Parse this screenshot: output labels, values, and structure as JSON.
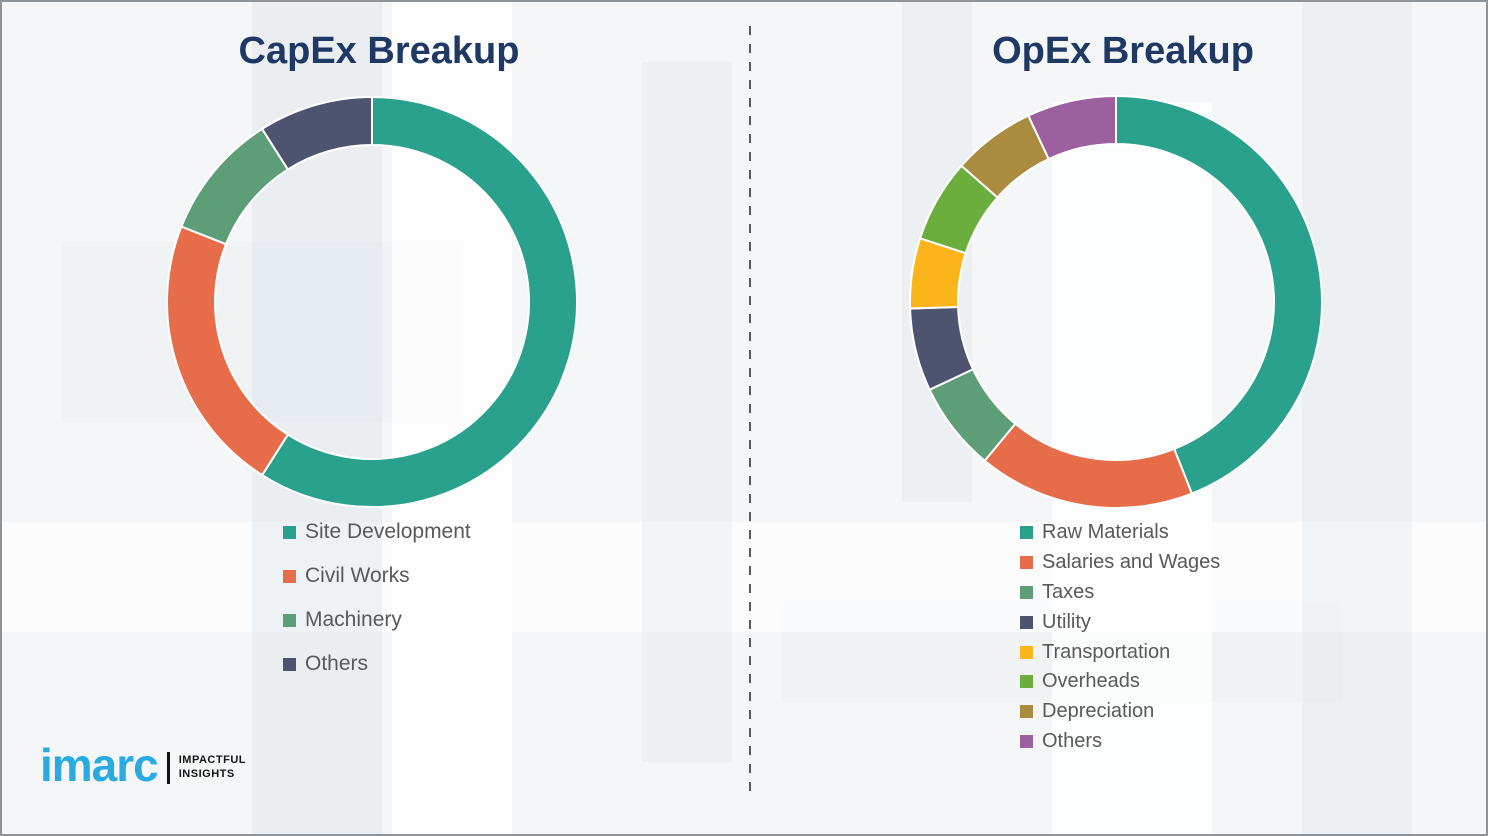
{
  "page": {
    "background_color": "#f5f6f7",
    "border_color": "#8f9499",
    "title_color": "#1f3864",
    "legend_text_color": "#595959",
    "divider_style": "vertical-dashed"
  },
  "chart_data": [
    {
      "type": "pie",
      "variant": "donut",
      "title": "CapEx Breakup",
      "legend_position": "below-left",
      "outer_radius": 205,
      "inner_radius": 157,
      "start_angle_deg": 0,
      "direction": "clockwise",
      "segments": [
        {
          "label": "Site Development",
          "value": 59,
          "color": "#2aa18d"
        },
        {
          "label": "Civil Works",
          "value": 22,
          "color": "#e66c4a"
        },
        {
          "label": "Machinery",
          "value": 10,
          "color": "#5d9e79"
        },
        {
          "label": "Others",
          "value": 9,
          "color": "#4e5370"
        }
      ]
    },
    {
      "type": "pie",
      "variant": "donut",
      "title": "OpEx Breakup",
      "legend_position": "below-left",
      "outer_radius": 206,
      "inner_radius": 158,
      "start_angle_deg": 0,
      "direction": "clockwise",
      "segments": [
        {
          "label": "Raw Materials",
          "value": 44,
          "color": "#2aa18d"
        },
        {
          "label": "Salaries and Wages",
          "value": 17,
          "color": "#e66c4a"
        },
        {
          "label": "Taxes",
          "value": 7,
          "color": "#5d9e79"
        },
        {
          "label": "Utility",
          "value": 6.5,
          "color": "#4e5370"
        },
        {
          "label": "Transportation",
          "value": 5.5,
          "color": "#fbb41a"
        },
        {
          "label": "Overheads",
          "value": 6.5,
          "color": "#6bae3e"
        },
        {
          "label": "Depreciation",
          "value": 6.5,
          "color": "#a98c3f"
        },
        {
          "label": "Others",
          "value": 7,
          "color": "#9b609d"
        }
      ]
    }
  ],
  "logo": {
    "brand": "imarc",
    "brand_color": "#29abe2",
    "tagline_line1": "IMPACTFUL",
    "tagline_line2": "INSIGHTS"
  }
}
